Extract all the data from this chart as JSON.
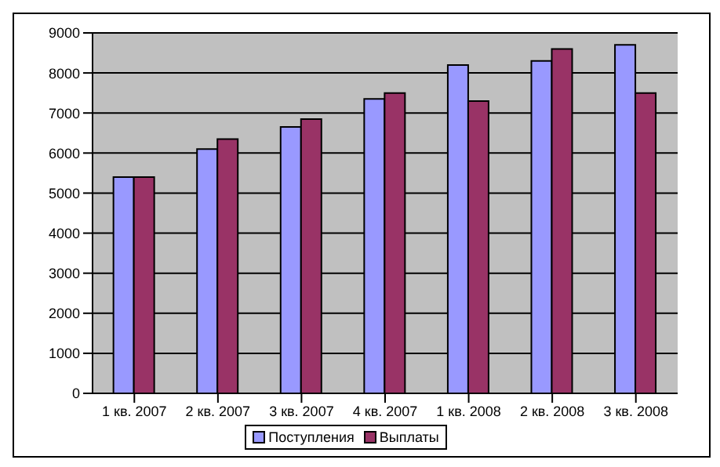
{
  "chart_data": {
    "type": "bar",
    "categories": [
      "1 кв. 2007",
      "2 кв. 2007",
      "3 кв. 2007",
      "4 кв. 2007",
      "1 кв. 2008",
      "2 кв. 2008",
      "3 кв. 2008"
    ],
    "series": [
      {
        "name": "Поступления",
        "color": "#9999ff",
        "values": [
          5400,
          6100,
          6650,
          7350,
          8200,
          8300,
          8700
        ]
      },
      {
        "name": "Выплаты",
        "color": "#993366",
        "values": [
          5400,
          6350,
          6850,
          7500,
          7300,
          8600,
          7500
        ]
      }
    ],
    "ylim": [
      0,
      9000
    ],
    "yticks": [
      0,
      1000,
      2000,
      3000,
      4000,
      5000,
      6000,
      7000,
      8000,
      9000
    ],
    "grid": "y",
    "legend": "bottom"
  }
}
